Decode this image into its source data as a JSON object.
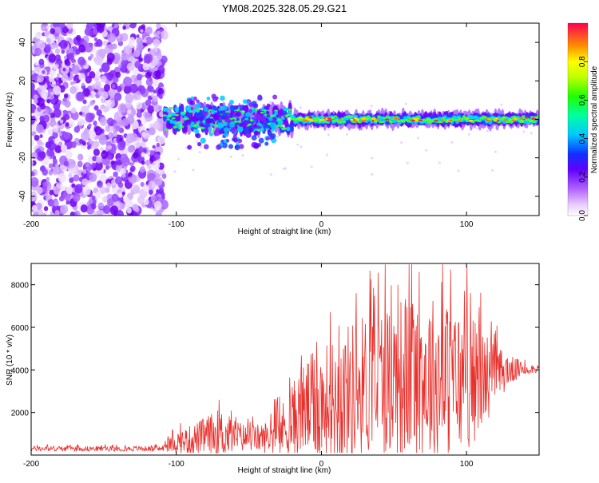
{
  "title": "YM08.2025.328.05.29.G21",
  "chart_data": [
    {
      "type": "heatmap",
      "name": "spectrogram",
      "xlabel": "Height of straight line (km)",
      "ylabel": "Frequency (Hz)",
      "xlim": [
        -200,
        150
      ],
      "ylim": [
        -50,
        50
      ],
      "xticks": [
        -200,
        -100,
        0,
        100
      ],
      "yticks": [
        -40,
        -20,
        0,
        20,
        40
      ],
      "noise_region_x": [
        -200,
        -108
      ],
      "signal_start_x": -108,
      "signal_center_freq_hz": 0,
      "colorbar": {
        "label": "Normalized spectral amplitude",
        "range": [
          0,
          1
        ],
        "ticks": [
          0.0,
          0.2,
          0.4,
          0.6,
          0.8
        ],
        "tick_labels": [
          "0.0",
          "0.2",
          "0.4",
          "0.6",
          "0.8"
        ],
        "colors": [
          "#ffffff",
          "#c080ff",
          "#8000ff",
          "#2040ff",
          "#00d0ff",
          "#00ff60",
          "#a0ff00",
          "#ffff00",
          "#ff8000",
          "#ff0040"
        ]
      }
    },
    {
      "type": "line",
      "name": "snr",
      "xlabel": "Height of straight line (km)",
      "ylabel": "SNR (10 * v/v)",
      "xlim": [
        -200,
        150
      ],
      "ylim": [
        0,
        9000
      ],
      "xticks": [
        -200,
        -100,
        0,
        100
      ],
      "yticks": [
        2000,
        4000,
        6000,
        8000
      ],
      "color": "#e8302c",
      "envelope": {
        "x": [
          -200,
          -110,
          -100,
          -90,
          -80,
          -70,
          -60,
          -50,
          -40,
          -30,
          -20,
          -10,
          0,
          10,
          20,
          30,
          40,
          50,
          60,
          70,
          80,
          90,
          100,
          110,
          120,
          130,
          140,
          150
        ],
        "baseline": [
          300,
          300,
          600,
          700,
          900,
          1000,
          900,
          800,
          800,
          1000,
          1600,
          2200,
          2400,
          2600,
          3000,
          3300,
          3500,
          3600,
          3700,
          3700,
          3600,
          3500,
          3400,
          3600,
          3800,
          4000,
          4050,
          4050
        ],
        "amplitude": [
          120,
          120,
          500,
          700,
          900,
          1200,
          800,
          600,
          700,
          1100,
          1800,
          2400,
          2700,
          3000,
          3300,
          3400,
          3600,
          3800,
          4000,
          4000,
          3900,
          3600,
          3300,
          2600,
          1400,
          700,
          300,
          150
        ]
      }
    }
  ]
}
